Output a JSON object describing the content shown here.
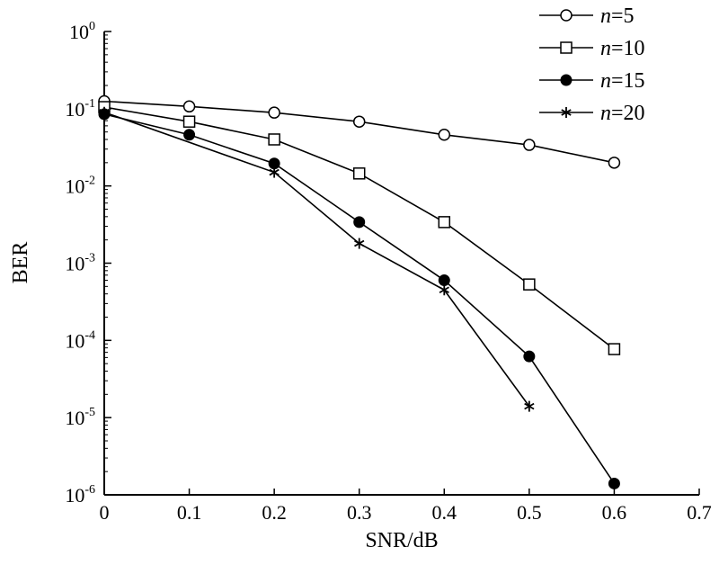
{
  "chart_data": {
    "type": "line",
    "title": "",
    "xlabel": "SNR/dB",
    "ylabel": "BER",
    "yscale": "log",
    "xlim": [
      0,
      0.7
    ],
    "ylim": [
      1e-06,
      1
    ],
    "x_ticks": [
      "0",
      "0.1",
      "0.2",
      "0.3",
      "0.4",
      "0.5",
      "0.6",
      "0.7"
    ],
    "y_tick_exponents": [
      "0",
      "-1",
      "-2",
      "-3",
      "-4",
      "-5",
      "-6"
    ],
    "y_tick_base": "10",
    "grid": false,
    "legend_position": "top-right",
    "series": [
      {
        "name": "n=5",
        "legend_var": "n",
        "legend_rest": "=5",
        "marker": "open-circle",
        "x": [
          0,
          0.1,
          0.2,
          0.3,
          0.4,
          0.5,
          0.6
        ],
        "values": [
          0.125,
          0.107,
          0.089,
          0.068,
          0.046,
          0.034,
          0.02
        ]
      },
      {
        "name": "n=10",
        "legend_var": "n",
        "legend_rest": "=10",
        "marker": "open-square",
        "x": [
          0,
          0.1,
          0.2,
          0.3,
          0.4,
          0.5,
          0.6
        ],
        "values": [
          0.105,
          0.068,
          0.04,
          0.0145,
          0.0034,
          0.00053,
          7.7e-05
        ]
      },
      {
        "name": "n=15",
        "legend_var": "n",
        "legend_rest": "=15",
        "marker": "filled-circle",
        "x": [
          0,
          0.1,
          0.2,
          0.3,
          0.4,
          0.5,
          0.6
        ],
        "values": [
          0.085,
          0.046,
          0.0195,
          0.0034,
          0.0006,
          6.2e-05,
          1.4e-06
        ]
      },
      {
        "name": "n=20",
        "legend_var": "n",
        "legend_rest": "=20",
        "marker": "asterisk",
        "x": [
          0,
          0.2,
          0.3,
          0.4,
          0.5
        ],
        "values": [
          0.09,
          0.015,
          0.0018,
          0.00045,
          1.4e-05
        ]
      }
    ]
  }
}
